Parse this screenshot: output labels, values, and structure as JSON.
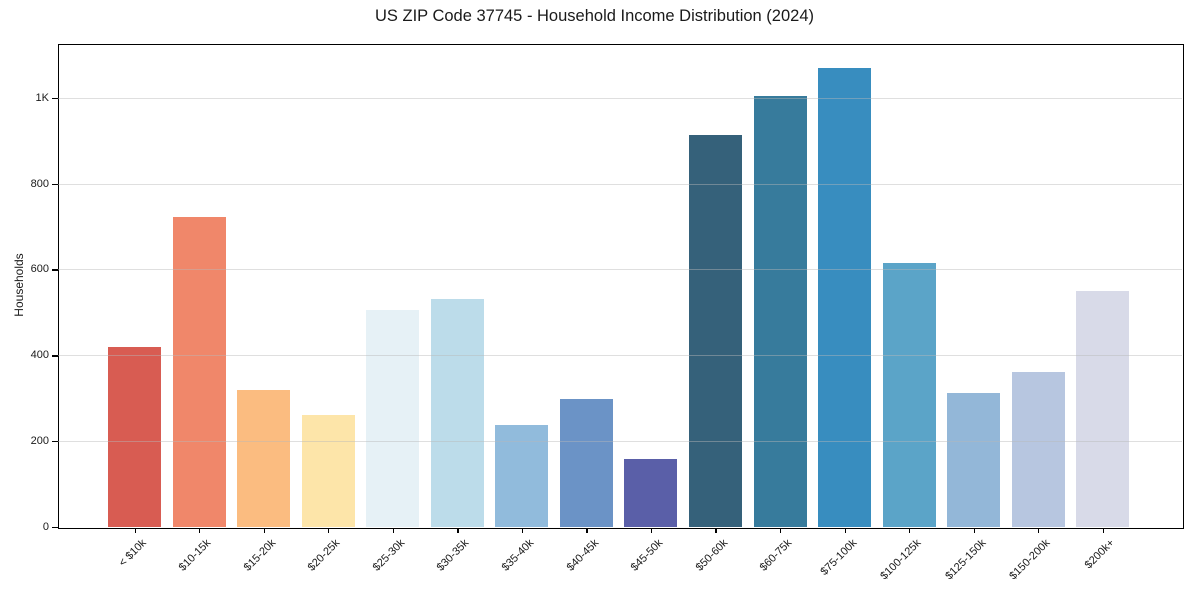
{
  "chart_data": {
    "type": "bar",
    "title": "US ZIP Code 37745 - Household Income Distribution (2024)",
    "xlabel": "",
    "ylabel": "Households",
    "categories": [
      "< $10k",
      "$10-15k",
      "$15-20k",
      "$20-25k",
      "$25-30k",
      "$30-35k",
      "$35-40k",
      "$40-45k",
      "$45-50k",
      "$50-60k",
      "$60-75k",
      "$75-100k",
      "$100-125k",
      "$125-150k",
      "$150-200k",
      "$200k+"
    ],
    "values": [
      420,
      722,
      320,
      262,
      505,
      532,
      237,
      298,
      158,
      912,
      1003,
      1070,
      616,
      313,
      360,
      549
    ],
    "colors": [
      "#d85c52",
      "#f0876a",
      "#fbbc80",
      "#fde5a9",
      "#e6f1f6",
      "#bcdcea",
      "#91bbdc",
      "#6b93c6",
      "#5a5fa8",
      "#35617a",
      "#377b9c",
      "#388dbf",
      "#5ba4c8",
      "#93b7d8",
      "#b7c6e0",
      "#d8dae8"
    ],
    "ylim": [
      0,
      1125
    ],
    "yticks": [
      {
        "value": 0,
        "label": "0"
      },
      {
        "value": 200,
        "label": "200"
      },
      {
        "value": 400,
        "label": "400"
      },
      {
        "value": 600,
        "label": "600"
      },
      {
        "value": 800,
        "label": "800"
      },
      {
        "value": 1000,
        "label": "1K"
      }
    ],
    "grid": "horizontal, light gray, drawn above bars",
    "legend": "none"
  }
}
